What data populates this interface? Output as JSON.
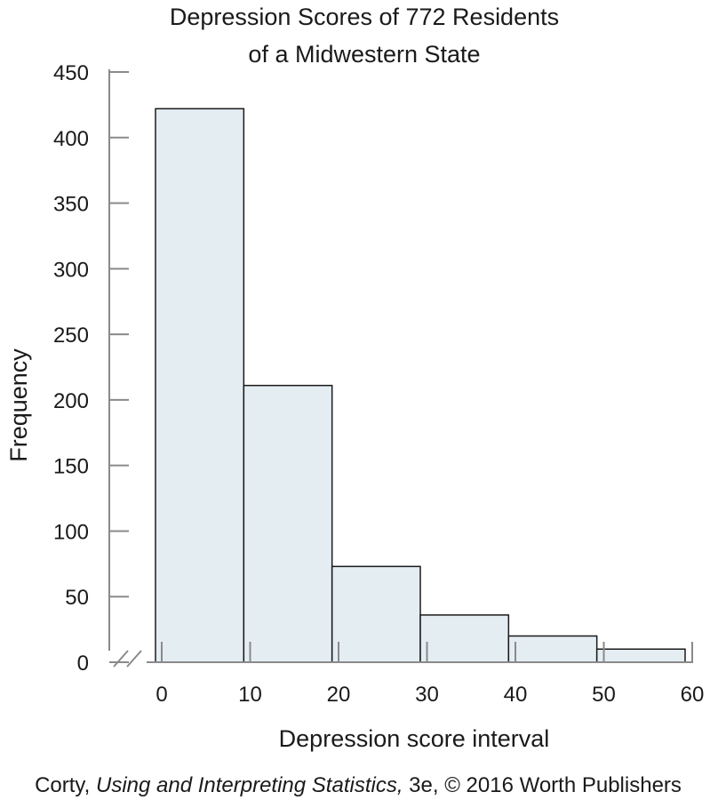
{
  "chart_data": {
    "type": "bar",
    "title": [
      "Depression Scores of 772 Residents",
      "of a Midwestern State"
    ],
    "xlabel": "Depression score interval",
    "ylabel": "Frequency",
    "bins": [
      {
        "start": 0,
        "end": 10,
        "value": 422
      },
      {
        "start": 10,
        "end": 20,
        "value": 211
      },
      {
        "start": 20,
        "end": 30,
        "value": 73
      },
      {
        "start": 30,
        "end": 40,
        "value": 36
      },
      {
        "start": 40,
        "end": 50,
        "value": 20
      },
      {
        "start": 50,
        "end": 60,
        "value": 10
      }
    ],
    "x_ticks": [
      "0",
      "10",
      "20",
      "30",
      "40",
      "50",
      "60"
    ],
    "y_ticks": [
      "0",
      "50",
      "100",
      "150",
      "200",
      "250",
      "300",
      "350",
      "400",
      "450"
    ],
    "xlim": [
      0,
      60
    ],
    "ylim": [
      0,
      450
    ],
    "grid": false,
    "axis_break": true
  },
  "credit": {
    "author": "Corty, ",
    "book": "Using and Interpreting Statistics,",
    "rest": " 3e, © 2016 Worth Publishers"
  }
}
